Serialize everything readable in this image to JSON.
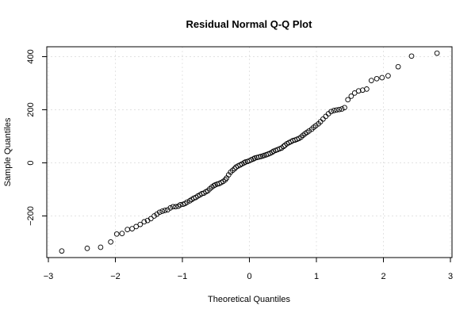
{
  "chart_data": {
    "type": "scatter",
    "title": "Residual Normal Q-Q Plot",
    "xlabel": "Theoretical Quantiles",
    "ylabel": "Sample Quantiles",
    "xlim": [
      -3,
      3
    ],
    "ylim": [
      -350,
      440
    ],
    "xticks": [
      -3,
      -2,
      -1,
      0,
      1,
      2,
      3
    ],
    "xtick_labels": [
      "−3",
      "−2",
      "−1",
      "0",
      "1",
      "2",
      "3"
    ],
    "yticks": [
      -200,
      0,
      200,
      400
    ],
    "ytick_labels": [
      "−200",
      "0",
      "200",
      "400"
    ],
    "grid": true,
    "series": [
      {
        "points": [
          [
            -2.8,
            -332
          ],
          [
            -2.42,
            -322
          ],
          [
            -2.22,
            -318
          ],
          [
            -2.07,
            -298
          ],
          [
            -1.98,
            -268
          ],
          [
            -1.9,
            -266
          ],
          [
            -1.82,
            -251
          ],
          [
            -1.75,
            -248
          ],
          [
            -1.69,
            -240
          ],
          [
            -1.63,
            -232
          ],
          [
            -1.57,
            -222
          ],
          [
            -1.52,
            -217
          ],
          [
            -1.47,
            -210
          ],
          [
            -1.42,
            -200
          ],
          [
            -1.38,
            -193
          ],
          [
            -1.34,
            -186
          ],
          [
            -1.3,
            -182
          ],
          [
            -1.26,
            -179
          ],
          [
            -1.22,
            -177
          ],
          [
            -1.18,
            -170
          ],
          [
            -1.14,
            -165
          ],
          [
            -1.1,
            -165
          ],
          [
            -1.06,
            -163
          ],
          [
            -1.03,
            -158
          ],
          [
            -0.99,
            -156
          ],
          [
            -0.96,
            -153
          ],
          [
            -0.93,
            -148
          ],
          [
            -0.89,
            -143
          ],
          [
            -0.86,
            -138
          ],
          [
            -0.83,
            -133
          ],
          [
            -0.8,
            -130
          ],
          [
            -0.77,
            -125
          ],
          [
            -0.74,
            -121
          ],
          [
            -0.71,
            -116
          ],
          [
            -0.68,
            -114
          ],
          [
            -0.65,
            -109
          ],
          [
            -0.62,
            -105
          ],
          [
            -0.59,
            -98
          ],
          [
            -0.56,
            -91
          ],
          [
            -0.53,
            -86
          ],
          [
            -0.51,
            -83
          ],
          [
            -0.48,
            -80
          ],
          [
            -0.45,
            -78
          ],
          [
            -0.42,
            -74
          ],
          [
            -0.39,
            -70
          ],
          [
            -0.36,
            -64
          ],
          [
            -0.34,
            -57
          ],
          [
            -0.31,
            -45
          ],
          [
            -0.28,
            -35
          ],
          [
            -0.25,
            -28
          ],
          [
            -0.22,
            -22
          ],
          [
            -0.2,
            -16
          ],
          [
            -0.17,
            -12
          ],
          [
            -0.14,
            -8
          ],
          [
            -0.11,
            -4
          ],
          [
            -0.08,
            0
          ],
          [
            -0.06,
            3
          ],
          [
            -0.03,
            5
          ],
          [
            0.0,
            8
          ],
          [
            0.03,
            12
          ],
          [
            0.06,
            15
          ],
          [
            0.08,
            18
          ],
          [
            0.11,
            20
          ],
          [
            0.14,
            22
          ],
          [
            0.17,
            24
          ],
          [
            0.2,
            26
          ],
          [
            0.22,
            28
          ],
          [
            0.25,
            30
          ],
          [
            0.28,
            33
          ],
          [
            0.31,
            36
          ],
          [
            0.34,
            40
          ],
          [
            0.36,
            44
          ],
          [
            0.39,
            47
          ],
          [
            0.42,
            50
          ],
          [
            0.45,
            53
          ],
          [
            0.48,
            56
          ],
          [
            0.51,
            62
          ],
          [
            0.53,
            66
          ],
          [
            0.56,
            72
          ],
          [
            0.59,
            76
          ],
          [
            0.62,
            80
          ],
          [
            0.65,
            84
          ],
          [
            0.68,
            86
          ],
          [
            0.71,
            89
          ],
          [
            0.74,
            92
          ],
          [
            0.77,
            97
          ],
          [
            0.8,
            104
          ],
          [
            0.83,
            110
          ],
          [
            0.86,
            115
          ],
          [
            0.89,
            120
          ],
          [
            0.93,
            127
          ],
          [
            0.96,
            134
          ],
          [
            0.99,
            140
          ],
          [
            1.03,
            147
          ],
          [
            1.06,
            155
          ],
          [
            1.1,
            165
          ],
          [
            1.14,
            175
          ],
          [
            1.18,
            185
          ],
          [
            1.22,
            193
          ],
          [
            1.26,
            197
          ],
          [
            1.3,
            199
          ],
          [
            1.34,
            201
          ],
          [
            1.38,
            203
          ],
          [
            1.42,
            208
          ],
          [
            1.47,
            238
          ],
          [
            1.52,
            251
          ],
          [
            1.57,
            263
          ],
          [
            1.63,
            271
          ],
          [
            1.69,
            274
          ],
          [
            1.75,
            278
          ],
          [
            1.82,
            310
          ],
          [
            1.9,
            317
          ],
          [
            1.98,
            321
          ],
          [
            2.07,
            328
          ],
          [
            2.22,
            362
          ],
          [
            2.42,
            402
          ],
          [
            2.8,
            413
          ]
        ]
      }
    ]
  }
}
